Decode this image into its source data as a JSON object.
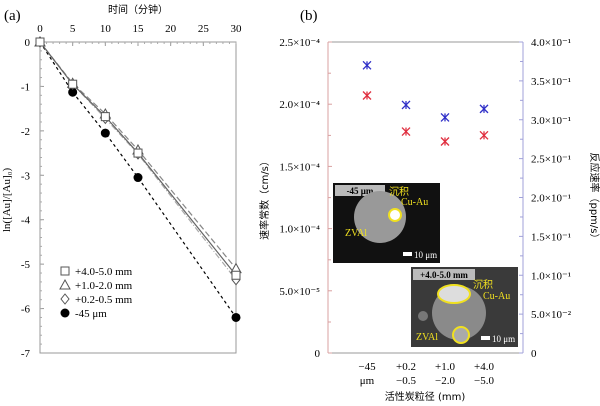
{
  "chart_data": [
    {
      "panel_label": "(a)",
      "type": "scatter",
      "xlabel": "时间（分钟）",
      "ylabel": "ln([Au]/[Au]₀)",
      "xlim": [
        0,
        30
      ],
      "ylim": [
        -7,
        0
      ],
      "xticks": [
        0,
        5,
        10,
        15,
        20,
        25,
        30
      ],
      "yticks": [
        0,
        -1,
        -2,
        -3,
        -4,
        -5,
        -6,
        -7
      ],
      "x_axis_position": "top",
      "legend_placement": "bottom-left",
      "series": [
        {
          "name": "+4.0-5.0 mm",
          "marker": "square",
          "line": "solid",
          "color": "#666666",
          "x": [
            0,
            5,
            10,
            15,
            30
          ],
          "y": [
            0,
            -0.95,
            -1.68,
            -2.5,
            -5.25
          ]
        },
        {
          "name": "+1.0-2.0 mm",
          "marker": "triangle",
          "line": "dash",
          "color": "#888888",
          "x": [
            0,
            5,
            10,
            15,
            30
          ],
          "y": [
            0,
            -0.93,
            -1.62,
            -2.43,
            -5.1
          ]
        },
        {
          "name": "+0.2-0.5 mm",
          "marker": "diamond",
          "line": "dashdot",
          "color": "#aaaaaa",
          "x": [
            0,
            5,
            10,
            15,
            30
          ],
          "y": [
            0,
            -0.95,
            -1.72,
            -2.52,
            -5.35
          ]
        },
        {
          "name": "-45 μm",
          "marker": "circle-filled",
          "line": "dotted",
          "color": "#000000",
          "x": [
            0,
            5,
            10,
            15,
            30
          ],
          "y": [
            0,
            -1.13,
            -2.05,
            -3.05,
            -6.2
          ]
        }
      ]
    },
    {
      "panel_label": "(b)",
      "type": "scatter",
      "xlabel": "活性炭粒径 (mm)",
      "ylabel": "速率常数（cm/s）",
      "y2label": "反应速率（ppm/s）",
      "categories": [
        [
          "−45",
          "μm"
        ],
        [
          "+0.2",
          "−0.5"
        ],
        [
          "+1.0",
          "−2.0"
        ],
        [
          "+4.0",
          "−5.0"
        ]
      ],
      "ylim": [
        0,
        0.00025
      ],
      "y2lim": [
        0,
        0.4
      ],
      "yticks": [
        "0",
        "5.0×10⁻⁵",
        "1.0×10⁻⁴",
        "1.5×10⁻⁴",
        "2.0×10⁻⁴",
        "2.5×10⁻⁴"
      ],
      "ytick_values": [
        0,
        5e-05,
        0.0001,
        0.00015,
        0.0002,
        0.00025
      ],
      "y2ticks": [
        "0",
        "5.0×10⁻²",
        "1.0×10⁻¹",
        "1.5×10⁻¹",
        "2.0×10⁻¹",
        "2.5×10⁻¹",
        "3.0×10⁻¹",
        "3.5×10⁻¹",
        "4.0×10⁻¹"
      ],
      "y2tick_values": [
        0,
        0.05,
        0.1,
        0.15,
        0.2,
        0.25,
        0.3,
        0.35,
        0.4
      ],
      "left_axis_color": "#d9a0a0",
      "right_axis_color": "#a0a0d9",
      "series": [
        {
          "axis": "left",
          "marker": "asterisk",
          "color": "#e03040",
          "values": [
            0.000207,
            0.000178,
            0.00017,
            0.000175
          ]
        },
        {
          "axis": "right",
          "marker": "asterisk",
          "color": "#3030c8",
          "values": [
            0.37,
            0.319,
            0.303,
            0.314
          ]
        }
      ],
      "insets": [
        {
          "title": "-45 μm",
          "labels": [
            "沉积",
            "Cu-Au",
            "ZVAl"
          ],
          "scale": "10 μm"
        },
        {
          "title": "+4.0-5.0 mm",
          "labels": [
            "沉积",
            "Cu-Au",
            "ZVAl"
          ],
          "scale": "10 μm"
        }
      ],
      "inset_label_color": "#f0e020"
    }
  ]
}
